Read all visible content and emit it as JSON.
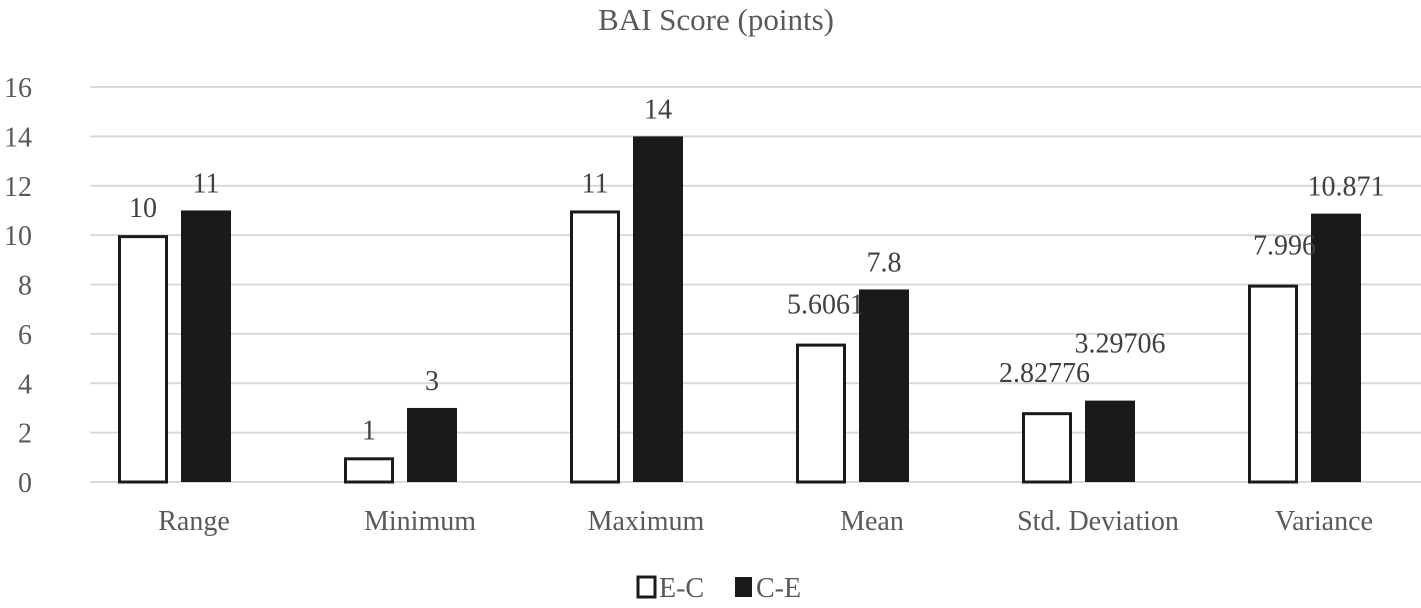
{
  "chart_data": {
    "type": "bar",
    "title": "BAI Score (points)",
    "categories": [
      "Range",
      "Minimum",
      "Maximum",
      "Mean",
      "Std. Deviation",
      "Variance"
    ],
    "series": [
      {
        "name": "E-C",
        "values": [
          10,
          1,
          11,
          5.6061,
          2.82776,
          7.996
        ],
        "labels": [
          "10",
          "1",
          "11",
          "5.6061",
          "2.82776",
          "7.996"
        ],
        "fill": "#ffffff",
        "stroke": "#1a1a1a"
      },
      {
        "name": "C-E",
        "values": [
          11,
          3,
          14,
          7.8,
          3.29706,
          10.871
        ],
        "labels": [
          "11",
          "3",
          "14",
          "7.8",
          "3.29706",
          "10.871"
        ],
        "fill": "#1a1a1a",
        "stroke": "#1a1a1a"
      }
    ],
    "ylim": [
      0,
      16
    ],
    "yticks": [
      0,
      2,
      4,
      6,
      8,
      10,
      12,
      14,
      16
    ],
    "grid": true,
    "legend": "bottom"
  }
}
